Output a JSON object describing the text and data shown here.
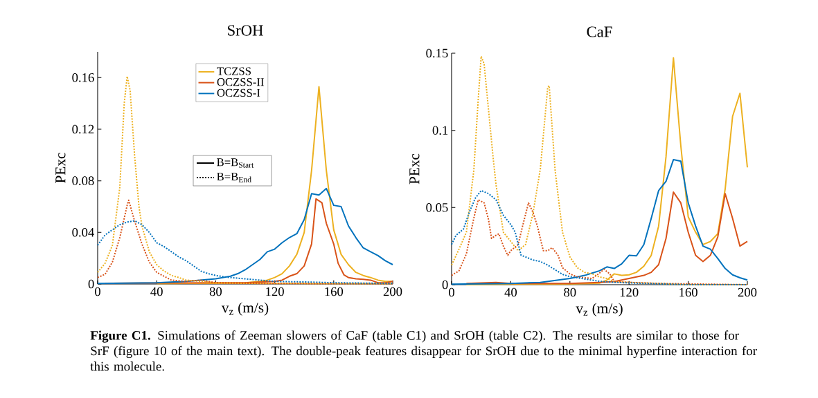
{
  "chart_data": [
    {
      "type": "line",
      "title": "SrOH",
      "xlabel": "v$_{z}$ (m/s)",
      "ylabel": "PExc",
      "xlim": [
        0,
        200
      ],
      "ylim": [
        0,
        0.18
      ],
      "xticks": [
        0,
        40,
        80,
        120,
        160,
        200
      ],
      "yticks": [
        0,
        0.04,
        0.08,
        0.12,
        0.16
      ],
      "legend": "top",
      "annotations": [
        "B=B$_{Start}$",
        "B=B$_{End}$",
        "**Figure C1.** Simulations of Zeeman slowers of CaF (table C1) and SrOH (table C2). The results are similar to those for SrF (figure 10 of the main text). The double-peak features disappear for SrOH due to the minimal hyperfine interaction for this molecule."
      ],
      "series": [
        {
          "name": "TCZSS",
          "color": "#edb120",
          "line_style": "solid",
          "x": [
            40,
            60,
            80,
            100,
            110,
            115,
            120,
            125,
            130,
            135,
            140,
            145,
            150,
            155,
            160,
            165,
            170,
            175,
            180,
            185,
            190,
            195,
            200
          ],
          "values": [
            0.0003,
            0.0005,
            0.0005,
            0.001,
            0.002,
            0.003,
            0.005,
            0.008,
            0.014,
            0.023,
            0.04,
            0.088,
            0.153,
            0.088,
            0.042,
            0.023,
            0.015,
            0.009,
            0.0066,
            0.005,
            0.003,
            0.002,
            0.002
          ]
        },
        {
          "name": "OCZSS-II",
          "color": "#d95319",
          "line_style": "solid",
          "x": [
            5,
            40,
            80,
            100,
            110,
            120,
            125,
            130,
            135,
            140,
            145,
            148,
            152,
            155,
            160,
            163,
            167,
            170,
            175,
            180,
            185,
            190,
            195,
            200
          ],
          "values": [
            0.0005,
            0.0008,
            0.001,
            0.001,
            0.0015,
            0.002,
            0.003,
            0.006,
            0.008,
            0.014,
            0.031,
            0.066,
            0.063,
            0.047,
            0.031,
            0.016,
            0.007,
            0.005,
            0.004,
            0.0036,
            0.003,
            0.001,
            0.001,
            0.002
          ]
        },
        {
          "name": "OCZSS-I",
          "color": "#0072bd",
          "line_style": "solid",
          "x": [
            0,
            40,
            60,
            80,
            90,
            95,
            100,
            105,
            110,
            115,
            120,
            125,
            130,
            135,
            140,
            145,
            150,
            155,
            160,
            165,
            170,
            175,
            180,
            185,
            190,
            195,
            200
          ],
          "values": [
            0.0004,
            0.001,
            0.002,
            0.004,
            0.006,
            0.008,
            0.011,
            0.015,
            0.019,
            0.025,
            0.027,
            0.032,
            0.036,
            0.039,
            0.05,
            0.07,
            0.069,
            0.074,
            0.061,
            0.06,
            0.045,
            0.036,
            0.028,
            0.025,
            0.022,
            0.018,
            0.015
          ]
        },
        {
          "color": "#edb120",
          "line_style": "dotted",
          "x": [
            0,
            5,
            10,
            15,
            18,
            20,
            22,
            25,
            28,
            30,
            35,
            40,
            45,
            50,
            55,
            60,
            70,
            80,
            100,
            150,
            200
          ],
          "values": [
            0.009,
            0.016,
            0.03,
            0.075,
            0.14,
            0.161,
            0.15,
            0.1,
            0.06,
            0.045,
            0.025,
            0.015,
            0.01,
            0.0066,
            0.005,
            0.003,
            0.002,
            0.001,
            0.0005,
            0.0003,
            0.0003
          ]
        },
        {
          "color": "#d95319",
          "line_style": "dotted",
          "x": [
            0,
            5,
            10,
            15,
            20,
            21,
            25,
            30,
            35,
            40,
            45,
            50,
            60,
            70,
            80,
            100,
            150,
            200
          ],
          "values": [
            0.005,
            0.0075,
            0.017,
            0.036,
            0.061,
            0.065,
            0.049,
            0.031,
            0.017,
            0.009,
            0.006,
            0.003,
            0.002,
            0.003,
            0.001,
            0.0005,
            0.0003,
            0.0003
          ]
        },
        {
          "color": "#0072bd",
          "line_style": "dotted",
          "x": [
            0,
            5,
            10,
            15,
            20,
            25,
            30,
            35,
            40,
            45,
            50,
            55,
            60,
            65,
            70,
            75,
            80,
            85,
            90,
            100,
            110,
            120,
            140,
            160,
            180,
            200
          ],
          "values": [
            0.03,
            0.038,
            0.042,
            0.046,
            0.048,
            0.049,
            0.046,
            0.04,
            0.032,
            0.029,
            0.025,
            0.021,
            0.018,
            0.014,
            0.01,
            0.008,
            0.0066,
            0.0057,
            0.005,
            0.004,
            0.003,
            0.002,
            0.0016,
            0.001,
            0.0007,
            0.0004
          ]
        }
      ]
    },
    {
      "type": "line",
      "title": "CaF",
      "xlabel": "v$_{z}$ (m/s)",
      "ylabel": "PExc",
      "xlim": [
        0,
        200
      ],
      "ylim": [
        0,
        0.15
      ],
      "xticks": [
        0,
        40,
        80,
        120,
        160,
        200
      ],
      "yticks": [
        0,
        0.05,
        0.1,
        0.15
      ],
      "series": [
        {
          "color": "#edb120",
          "line_style": "solid",
          "x": [
            10,
            40,
            80,
            100,
            105,
            110,
            115,
            120,
            125,
            130,
            135,
            140,
            145,
            150,
            155,
            160,
            165,
            170,
            175,
            180,
            185,
            190,
            195,
            200
          ],
          "values": [
            0,
            0.0003,
            0.0005,
            0.001,
            0.003,
            0.007,
            0.006,
            0.0064,
            0.008,
            0.012,
            0.019,
            0.038,
            0.083,
            0.147,
            0.09,
            0.044,
            0.034,
            0.026,
            0.028,
            0.033,
            0.062,
            0.109,
            0.124,
            0.076
          ]
        },
        {
          "color": "#d95319",
          "line_style": "solid",
          "x": [
            10,
            30,
            40,
            80,
            100,
            110,
            120,
            125,
            130,
            135,
            140,
            145,
            150,
            155,
            160,
            165,
            170,
            175,
            180,
            185,
            190,
            195,
            200
          ],
          "values": [
            0.0008,
            0.0015,
            0.0008,
            0.0008,
            0.0015,
            0.002,
            0.004,
            0.005,
            0.006,
            0.008,
            0.013,
            0.03,
            0.06,
            0.053,
            0.034,
            0.019,
            0.015,
            0.019,
            0.031,
            0.059,
            0.043,
            0.025,
            0.028
          ]
        },
        {
          "color": "#0072bd",
          "line_style": "solid",
          "x": [
            0,
            40,
            60,
            80,
            90,
            95,
            100,
            105,
            110,
            115,
            120,
            125,
            130,
            135,
            140,
            145,
            150,
            155,
            160,
            165,
            170,
            175,
            180,
            185,
            190,
            195,
            200
          ],
          "values": [
            0.0003,
            0.0008,
            0.0015,
            0.004,
            0.006,
            0.0075,
            0.009,
            0.0115,
            0.0105,
            0.0135,
            0.019,
            0.0187,
            0.026,
            0.043,
            0.061,
            0.067,
            0.081,
            0.08,
            0.053,
            0.038,
            0.025,
            0.023,
            0.017,
            0.0105,
            0.0064,
            0.0045,
            0.003
          ]
        },
        {
          "color": "#edb120",
          "line_style": "dotted",
          "x": [
            0,
            5,
            10,
            15,
            18,
            20,
            22,
            25,
            28,
            30,
            35,
            40,
            45,
            50,
            55,
            60,
            65,
            66,
            70,
            75,
            80,
            85,
            90,
            95,
            100,
            105,
            110,
            120,
            140,
            160,
            200
          ],
          "values": [
            0.0127,
            0.023,
            0.034,
            0.074,
            0.12,
            0.148,
            0.143,
            0.113,
            0.083,
            0.065,
            0.034,
            0.028,
            0.022,
            0.026,
            0.046,
            0.075,
            0.128,
            0.129,
            0.074,
            0.034,
            0.018,
            0.011,
            0.008,
            0.007,
            0.005,
            0.004,
            0.002,
            0.0015,
            0.0008,
            0,
            0
          ]
        },
        {
          "color": "#d95319",
          "line_style": "dotted",
          "x": [
            0,
            5,
            10,
            15,
            18,
            22,
            25,
            27,
            30,
            32,
            35,
            38,
            40,
            45,
            48,
            52,
            55,
            58,
            62,
            65,
            68,
            72,
            75,
            80,
            85,
            90,
            95,
            100,
            103,
            107,
            110,
            120,
            140,
            200
          ],
          "values": [
            0.006,
            0.009,
            0.02,
            0.043,
            0.055,
            0.053,
            0.042,
            0.03,
            0.032,
            0.033,
            0.025,
            0.019,
            0.022,
            0.026,
            0.038,
            0.053,
            0.047,
            0.038,
            0.022,
            0.022,
            0.024,
            0.019,
            0.011,
            0.007,
            0.005,
            0.0045,
            0.004,
            0.0075,
            0.01,
            0.007,
            0.002,
            0.0015,
            0.0008,
            0
          ]
        },
        {
          "color": "#0072bd",
          "line_style": "dotted",
          "x": [
            0,
            3,
            8,
            12,
            16,
            20,
            25,
            30,
            35,
            40,
            43,
            47,
            50,
            55,
            60,
            65,
            70,
            75,
            80,
            90,
            100,
            110,
            130,
            160,
            200
          ],
          "values": [
            0.026,
            0.032,
            0.036,
            0.047,
            0.056,
            0.061,
            0.059,
            0.055,
            0.045,
            0.039,
            0.034,
            0.019,
            0.018,
            0.016,
            0.015,
            0.0127,
            0.0097,
            0.0067,
            0.0052,
            0.0037,
            0.0022,
            0.0015,
            0.0008,
            0,
            0
          ]
        }
      ]
    }
  ]
}
